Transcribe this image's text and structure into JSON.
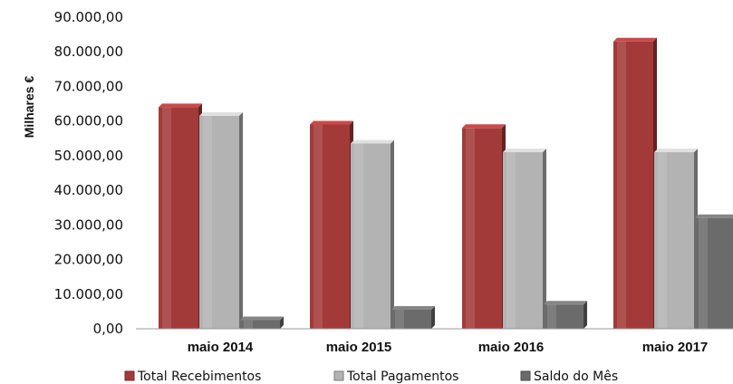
{
  "chart_data": {
    "type": "bar",
    "title": "",
    "xlabel": "",
    "ylabel": "Milhares €",
    "ylim": [
      0,
      90000
    ],
    "yticks": [
      "0,00",
      "10.000,00",
      "20.000,00",
      "30.000,00",
      "40.000,00",
      "50.000,00",
      "60.000,00",
      "70.000,00",
      "80.000,00",
      "90.000,00"
    ],
    "categories": [
      "maio  2014",
      "maio  2015",
      "maio  2016",
      "maio 2017"
    ],
    "series": [
      {
        "name": "Total Recebimentos",
        "values": [
          64000,
          59000,
          58000,
          83000
        ],
        "color": "#a33a3a"
      },
      {
        "name": "Total Pagamentos",
        "values": [
          61500,
          53500,
          51000,
          51000
        ],
        "color": "#b3b3b3"
      },
      {
        "name": "Saldo do Mês",
        "values": [
          2500,
          5500,
          7000,
          32000
        ],
        "color": "#6b6b6b"
      }
    ],
    "legend_position": "bottom",
    "grid": false
  }
}
